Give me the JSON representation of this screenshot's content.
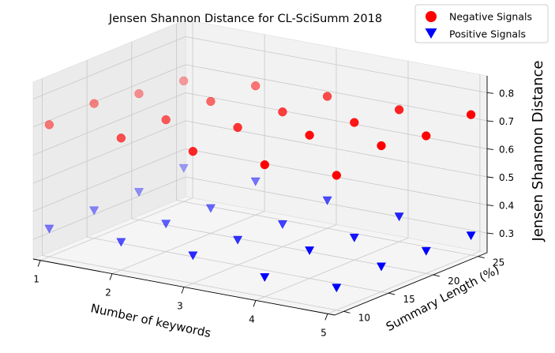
{
  "chart_data": {
    "type": "scatter3d",
    "title": "Jensen Shannon Distance for CL-SciSumm 2018",
    "xlabel": "Number of keywords",
    "ylabel": "Summary Length (%)",
    "zlabel": "Jensen Shannon Distance",
    "xlim": [
      1,
      5
    ],
    "ylim": [
      10,
      25
    ],
    "zlim": [
      0.25,
      0.85
    ],
    "xticks": [
      "1",
      "2",
      "3",
      "4",
      "5"
    ],
    "yticks": [
      "10",
      "15",
      "20",
      "25"
    ],
    "zticks": [
      "0.3",
      "0.4",
      "0.5",
      "0.6",
      "0.7",
      "0.8"
    ],
    "legend_position": "top-right",
    "colors": {
      "negative": "#ff0000",
      "positive": "#0000ff"
    },
    "series": [
      {
        "name": "Negative Signals",
        "marker": "circle",
        "points": [
          {
            "x": 1,
            "y": 10,
            "z": 0.7
          },
          {
            "x": 1,
            "y": 15,
            "z": 0.71
          },
          {
            "x": 1,
            "y": 20,
            "z": 0.68
          },
          {
            "x": 1,
            "y": 25,
            "z": 0.66
          },
          {
            "x": 2,
            "y": 10,
            "z": 0.7
          },
          {
            "x": 2,
            "y": 15,
            "z": 0.7
          },
          {
            "x": 2,
            "y": 20,
            "z": 0.7
          },
          {
            "x": 2,
            "y": 25,
            "z": 0.69
          },
          {
            "x": 3,
            "y": 10,
            "z": 0.7
          },
          {
            "x": 3,
            "y": 15,
            "z": 0.72
          },
          {
            "x": 3,
            "y": 20,
            "z": 0.71
          },
          {
            "x": 3,
            "y": 25,
            "z": 0.7
          },
          {
            "x": 4,
            "y": 10,
            "z": 0.7
          },
          {
            "x": 4,
            "y": 15,
            "z": 0.74
          },
          {
            "x": 4,
            "y": 20,
            "z": 0.72
          },
          {
            "x": 4,
            "y": 25,
            "z": 0.7
          },
          {
            "x": 5,
            "y": 10,
            "z": 0.71
          },
          {
            "x": 5,
            "y": 15,
            "z": 0.75
          },
          {
            "x": 5,
            "y": 20,
            "z": 0.72
          },
          {
            "x": 5,
            "y": 25,
            "z": 0.73
          }
        ]
      },
      {
        "name": "Positive Signals",
        "marker": "triangle-down",
        "points": [
          {
            "x": 1,
            "y": 10,
            "z": 0.33
          },
          {
            "x": 1,
            "y": 15,
            "z": 0.33
          },
          {
            "x": 1,
            "y": 20,
            "z": 0.33
          },
          {
            "x": 1,
            "y": 25,
            "z": 0.35
          },
          {
            "x": 2,
            "y": 10,
            "z": 0.33
          },
          {
            "x": 2,
            "y": 15,
            "z": 0.33
          },
          {
            "x": 2,
            "y": 20,
            "z": 0.32
          },
          {
            "x": 2,
            "y": 25,
            "z": 0.35
          },
          {
            "x": 3,
            "y": 10,
            "z": 0.33
          },
          {
            "x": 3,
            "y": 15,
            "z": 0.32
          },
          {
            "x": 3,
            "y": 20,
            "z": 0.31
          },
          {
            "x": 3,
            "y": 25,
            "z": 0.33
          },
          {
            "x": 4,
            "y": 10,
            "z": 0.3
          },
          {
            "x": 4,
            "y": 15,
            "z": 0.33
          },
          {
            "x": 4,
            "y": 20,
            "z": 0.31
          },
          {
            "x": 4,
            "y": 25,
            "z": 0.32
          },
          {
            "x": 5,
            "y": 10,
            "z": 0.31
          },
          {
            "x": 5,
            "y": 15,
            "z": 0.32
          },
          {
            "x": 5,
            "y": 20,
            "z": 0.31
          },
          {
            "x": 5,
            "y": 25,
            "z": 0.3
          }
        ]
      }
    ]
  }
}
